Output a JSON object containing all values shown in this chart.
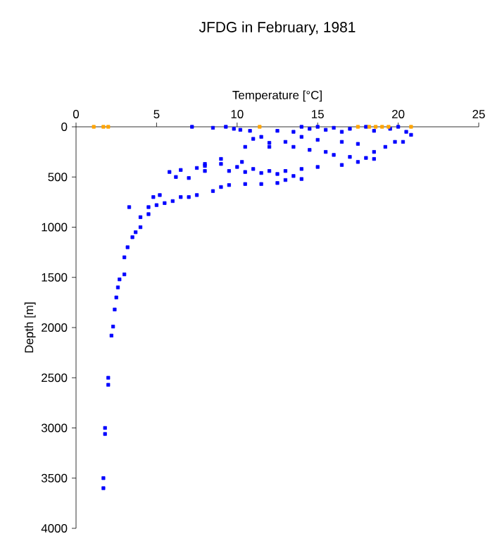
{
  "chart_data": {
    "type": "scatter",
    "title": "JFDG in February, 1981",
    "xlabel": "Temperature [°C]",
    "ylabel": "Depth [m]",
    "xlim": [
      0,
      25
    ],
    "ylim": [
      4000,
      0
    ],
    "xticks": [
      0,
      5,
      10,
      15,
      20,
      25
    ],
    "yticks": [
      0,
      500,
      1000,
      1500,
      2000,
      2500,
      3000,
      3500,
      4000
    ],
    "grid": false,
    "marker": "square",
    "series": [
      {
        "color": "#0000ff",
        "x": [
          7.2,
          8.5,
          9.3,
          9.8,
          10.2,
          10.8,
          12.5,
          13.5,
          14,
          14.5,
          15,
          15.5,
          16,
          16.5,
          17,
          18,
          18.5,
          19.5,
          20,
          20.5,
          20.8,
          20.3,
          19.8,
          19.2,
          18.5,
          17.5,
          16.5,
          15,
          14,
          13,
          12,
          11.5,
          11,
          10.5,
          12,
          13.5,
          14.5,
          15.5,
          16,
          17,
          18,
          18.5,
          17.5,
          16.5,
          15,
          14,
          13,
          12,
          11,
          10,
          9,
          8,
          7.5,
          6.5,
          5.8,
          6.2,
          7,
          8,
          9.5,
          10.5,
          11.5,
          12.5,
          13.5,
          14,
          13,
          12.5,
          11.5,
          10.5,
          9.5,
          9,
          8.5,
          7.5,
          7,
          6.5,
          6,
          5.5,
          5,
          4.5,
          4.5,
          4,
          4,
          3.7,
          3.5,
          3.2,
          3,
          3,
          2.7,
          2.6,
          2.5,
          2.4,
          2.3,
          2.2,
          2,
          2,
          1.8,
          1.8,
          1.7,
          1.7,
          8,
          9,
          10.3,
          3.3,
          4.8,
          5.2
        ],
        "values": [
          0,
          10,
          0,
          20,
          30,
          40,
          40,
          50,
          0,
          20,
          0,
          30,
          10,
          50,
          20,
          0,
          40,
          20,
          0,
          50,
          80,
          150,
          150,
          200,
          250,
          170,
          150,
          130,
          100,
          150,
          160,
          100,
          120,
          200,
          200,
          200,
          230,
          250,
          280,
          300,
          310,
          320,
          350,
          380,
          400,
          420,
          440,
          440,
          420,
          400,
          370,
          390,
          410,
          430,
          450,
          500,
          510,
          440,
          440,
          450,
          460,
          470,
          490,
          520,
          530,
          560,
          570,
          570,
          580,
          600,
          640,
          680,
          700,
          700,
          740,
          760,
          780,
          800,
          870,
          900,
          1000,
          1050,
          1100,
          1200,
          1300,
          1470,
          1520,
          1600,
          1700,
          1820,
          1990,
          2080,
          2500,
          2570,
          3000,
          3060,
          3500,
          3600,
          370,
          320,
          350,
          800,
          700,
          680
        ]
      },
      {
        "color": "#ffa500",
        "x": [
          1.1,
          1.7,
          2.0,
          11.4,
          17.5,
          18.2,
          18.6,
          19.0,
          19.4,
          20.8
        ],
        "values": [
          0,
          0,
          0,
          0,
          0,
          0,
          0,
          0,
          0,
          0
        ]
      }
    ]
  }
}
